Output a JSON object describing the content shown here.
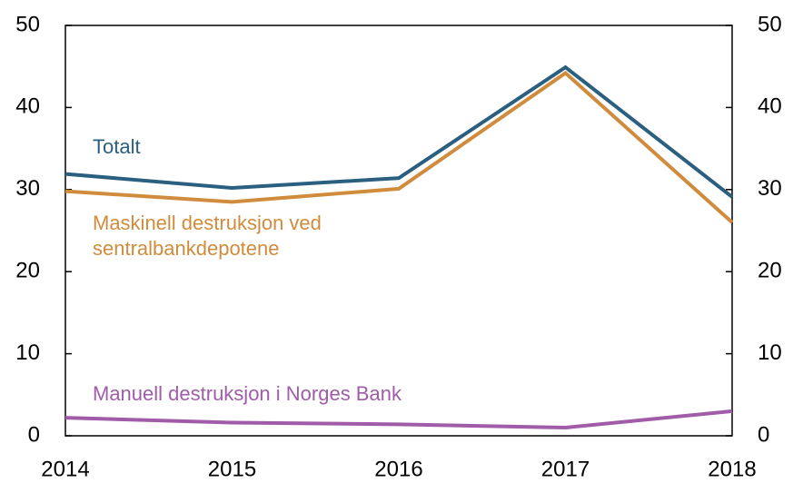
{
  "chart_data": {
    "type": "line",
    "categories": [
      "2014",
      "2015",
      "2016",
      "2017",
      "2018"
    ],
    "series": [
      {
        "name": "Totalt",
        "color": "#2a5f80",
        "values": [
          31.9,
          30.2,
          31.4,
          44.9,
          29.1
        ]
      },
      {
        "name": "Maskinell destruksjon ved sentralbankdepotene",
        "color": "#d08c3c",
        "values": [
          29.8,
          28.5,
          30.1,
          44.2,
          26.0
        ]
      },
      {
        "name": "Manuell destruksjon i Norges Bank",
        "color": "#a05ca8",
        "values": [
          2.2,
          1.6,
          1.4,
          1.0,
          3.0
        ]
      }
    ],
    "ylim": [
      0,
      50
    ],
    "yticks": [
      0,
      10,
      20,
      30,
      40,
      50
    ],
    "y2lim": [
      0,
      50
    ],
    "y2ticks": [
      0,
      10,
      20,
      30,
      40,
      50
    ],
    "grid": false
  }
}
